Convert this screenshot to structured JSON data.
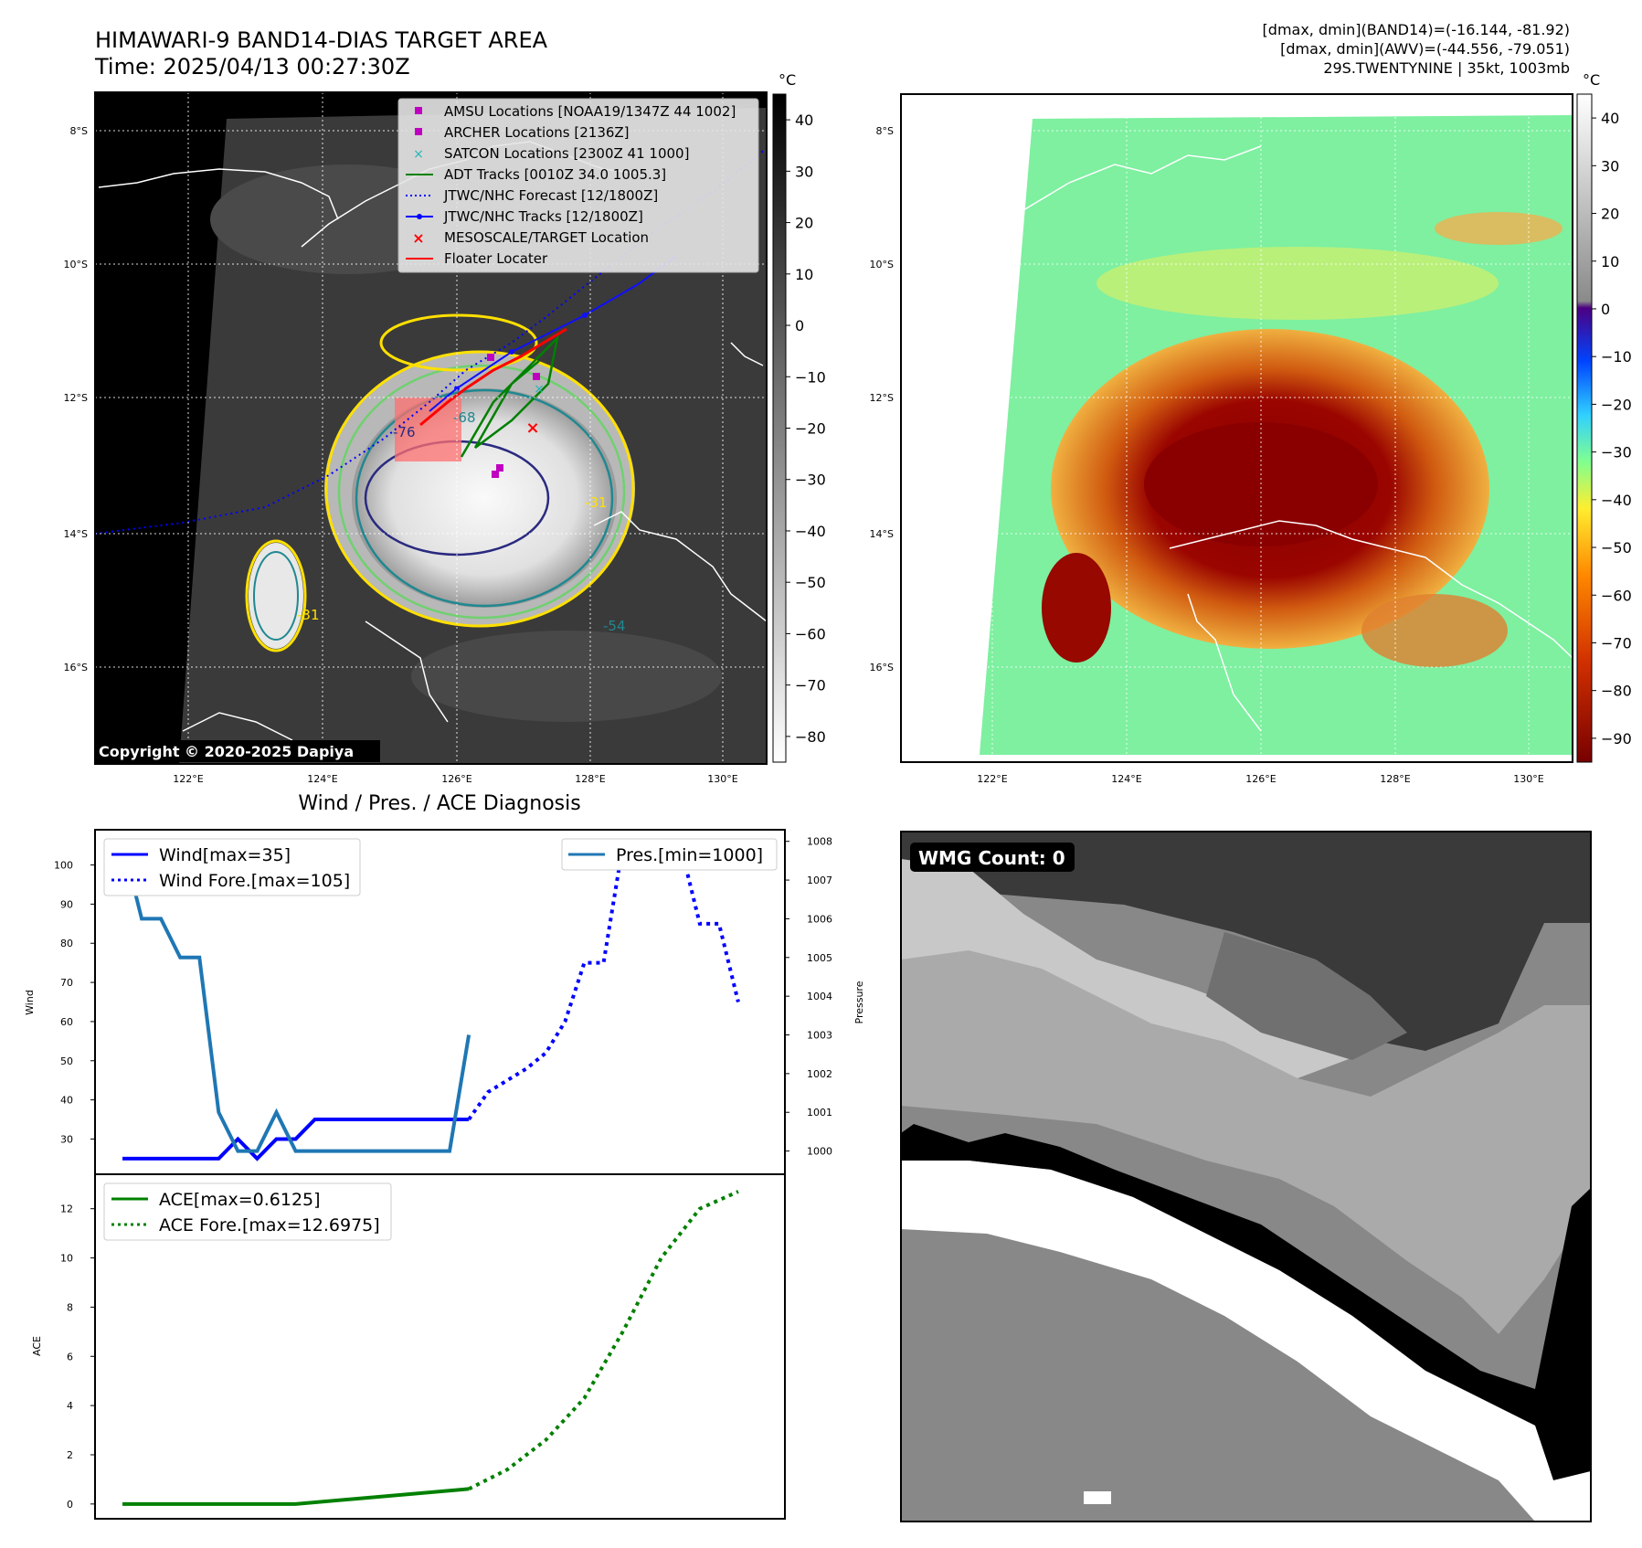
{
  "header": {
    "title_line1": "HIMAWARI-9 BAND14-DIAS TARGET AREA",
    "title_line2": "Time: 2025/04/13 00:27:30Z",
    "info_line1": "[dmax, dmin](BAND14)=(-16.144, -81.92)",
    "info_line2": "[dmax, dmin](AWV)=(-44.556, -79.051)",
    "info_line3": "29S.TWENTYNINE | 35kt, 1003mb"
  },
  "map_axes": {
    "lat_labels": [
      "8°S",
      "10°S",
      "12°S",
      "14°S",
      "16°S"
    ],
    "lon_labels": [
      "122°E",
      "124°E",
      "126°E",
      "128°E",
      "130°E"
    ],
    "copyright": "Copyright © 2020-2025 Dapiya",
    "contour_labels": [
      "-76",
      "-68",
      "-54",
      "-31",
      "-31"
    ]
  },
  "legend": {
    "items": [
      {
        "label": "AMSU Locations [NOAA19/1347Z 44 1002]",
        "marker": "square",
        "color": "#c000c0"
      },
      {
        "label": "ARCHER Locations [2136Z]",
        "marker": "square",
        "color": "#c000c0"
      },
      {
        "label": "SATCON Locations [2300Z 41 1000]",
        "marker": "x",
        "color": "#20b8b8"
      },
      {
        "label": "ADT Tracks [0010Z 34.0 1005.3]",
        "marker": "line",
        "color": "#008000"
      },
      {
        "label": "JTWC/NHC Forecast [12/1800Z]",
        "marker": "dotted",
        "color": "#0000ff"
      },
      {
        "label": "JTWC/NHC Tracks [12/1800Z]",
        "marker": "line-dot",
        "color": "#0000ff"
      },
      {
        "label": "MESOSCALE/TARGET Location",
        "marker": "x",
        "color": "#ff0000"
      },
      {
        "label": "Floater Locater",
        "marker": "line",
        "color": "#ff0000"
      }
    ]
  },
  "colorbar_gray": {
    "unit": "°C",
    "ticks": [
      "40",
      "30",
      "20",
      "10",
      "0",
      "−10",
      "−20",
      "−30",
      "−40",
      "−50",
      "−60",
      "−70",
      "−80"
    ]
  },
  "colorbar_color": {
    "unit": "°C",
    "ticks": [
      "40",
      "30",
      "20",
      "10",
      "0",
      "−10",
      "−20",
      "−30",
      "−40",
      "−50",
      "−60",
      "−70",
      "−80",
      "−90"
    ]
  },
  "diagnosis": {
    "title": "Wind / Pres. / ACE Diagnosis",
    "wind_ylabel": "Wind",
    "pres_ylabel": "Pressure",
    "ace_ylabel": "ACE",
    "legend_wind": "Wind[max=35]",
    "legend_wind_fore": "Wind Fore.[max=105]",
    "legend_pres": "Pres.[min=1000]",
    "legend_ace": "ACE[max=0.6125]",
    "legend_ace_fore": "ACE Fore.[max=12.6975]"
  },
  "wmg": {
    "label": "WMG Count: 0"
  },
  "chart_data": [
    {
      "type": "line",
      "title": "Wind / Pres. / ACE Diagnosis",
      "ylabel": "Wind",
      "xlim": [
        0,
        33
      ],
      "ylim": [
        21,
        109
      ],
      "yticks": [
        30,
        40,
        50,
        60,
        70,
        80,
        90,
        100
      ],
      "series": [
        {
          "name": "Wind[max=35]",
          "color": "#0000ff",
          "style": "solid",
          "x": [
            0,
            1,
            2,
            3,
            4,
            5,
            6,
            7,
            8,
            9,
            10,
            11,
            12,
            13,
            14,
            15,
            16,
            17,
            18
          ],
          "values": [
            25,
            25,
            25,
            25,
            25,
            25,
            30,
            25,
            30,
            30,
            35,
            35,
            35,
            35,
            35,
            35,
            35,
            35,
            35
          ]
        },
        {
          "name": "Wind Fore.[max=105]",
          "color": "#0000ff",
          "style": "dotted",
          "x": [
            18,
            19,
            20,
            21,
            22,
            23,
            24,
            25,
            26,
            27,
            28,
            29,
            30,
            31,
            32
          ],
          "values": [
            35,
            42,
            45,
            48,
            52,
            60,
            75,
            75,
            105,
            105,
            105,
            105,
            85,
            85,
            65
          ]
        }
      ]
    },
    {
      "type": "line",
      "ylabel": "Pressure",
      "ylim": [
        999.4,
        1008.3
      ],
      "yticks": [
        1000,
        1001,
        1002,
        1003,
        1004,
        1005,
        1006,
        1007,
        1008
      ],
      "series": [
        {
          "name": "Pres.[min=1000]",
          "color": "#1f77b4",
          "style": "solid",
          "x": [
            0,
            1,
            2,
            3,
            4,
            5,
            6,
            7,
            8,
            9,
            10,
            11,
            12,
            13,
            14,
            15,
            16,
            17,
            18
          ],
          "values": [
            1008,
            1006,
            1006,
            1005,
            1005,
            1001,
            1000,
            1000,
            1001,
            1000,
            1000,
            1000,
            1000,
            1000,
            1000,
            1000,
            1000,
            1000,
            1003
          ]
        }
      ]
    },
    {
      "type": "line",
      "ylabel": "ACE",
      "ylim": [
        -0.6,
        13.4
      ],
      "yticks": [
        0,
        2,
        4,
        6,
        8,
        10,
        12
      ],
      "series": [
        {
          "name": "ACE[max=0.6125]",
          "color": "#008000",
          "style": "solid",
          "x": [
            0,
            9,
            18
          ],
          "values": [
            0,
            0,
            0.6125
          ]
        },
        {
          "name": "ACE Fore.[max=12.6975]",
          "color": "#008000",
          "style": "dotted",
          "x": [
            18,
            20,
            22,
            24,
            26,
            28,
            30,
            32
          ],
          "values": [
            0.6125,
            1.4,
            2.6,
            4.3,
            7.0,
            10.0,
            12.0,
            12.6975
          ]
        }
      ]
    }
  ]
}
